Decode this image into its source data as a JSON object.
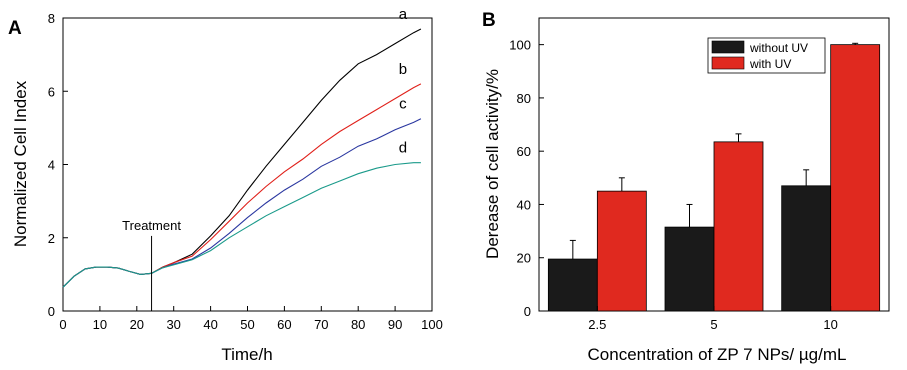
{
  "chart_data": [
    {
      "panel_label": "A",
      "type": "line",
      "xlabel": "Time/h",
      "ylabel": "Normalized Cell Index",
      "xlim": [
        0,
        100
      ],
      "ylim": [
        0,
        8
      ],
      "xticks": [
        0,
        10,
        20,
        30,
        40,
        50,
        60,
        70,
        80,
        90,
        100
      ],
      "yticks": [
        0,
        2,
        4,
        6,
        8
      ],
      "grid": false,
      "annotation": {
        "text": "Treatment",
        "x": 24
      },
      "series": [
        {
          "label": "a",
          "color": "#000000",
          "x": [
            0,
            3,
            6,
            9,
            12,
            15,
            18,
            21,
            24,
            27,
            30,
            35,
            40,
            45,
            50,
            55,
            60,
            65,
            70,
            75,
            80,
            85,
            90,
            95,
            97
          ],
          "y": [
            0.65,
            0.95,
            1.15,
            1.2,
            1.2,
            1.17,
            1.08,
            1.0,
            1.03,
            1.2,
            1.32,
            1.55,
            2.05,
            2.6,
            3.3,
            3.95,
            4.55,
            5.15,
            5.75,
            6.3,
            6.75,
            7.0,
            7.3,
            7.6,
            7.7
          ]
        },
        {
          "label": "b",
          "color": "#e0201a",
          "x": [
            0,
            3,
            6,
            9,
            12,
            15,
            18,
            21,
            24,
            27,
            30,
            35,
            40,
            45,
            50,
            55,
            60,
            65,
            70,
            75,
            80,
            85,
            90,
            95,
            97
          ],
          "y": [
            0.65,
            0.95,
            1.15,
            1.2,
            1.2,
            1.17,
            1.08,
            1.0,
            1.03,
            1.2,
            1.32,
            1.5,
            1.95,
            2.45,
            2.95,
            3.4,
            3.8,
            4.15,
            4.55,
            4.9,
            5.2,
            5.5,
            5.8,
            6.1,
            6.2
          ]
        },
        {
          "label": "c",
          "color": "#2a37a0",
          "x": [
            0,
            3,
            6,
            9,
            12,
            15,
            18,
            21,
            24,
            27,
            30,
            35,
            40,
            45,
            50,
            55,
            60,
            65,
            70,
            75,
            80,
            85,
            90,
            95,
            97
          ],
          "y": [
            0.65,
            0.95,
            1.15,
            1.2,
            1.2,
            1.17,
            1.08,
            1.0,
            1.03,
            1.18,
            1.28,
            1.42,
            1.72,
            2.12,
            2.55,
            2.95,
            3.3,
            3.6,
            3.95,
            4.2,
            4.5,
            4.7,
            4.95,
            5.15,
            5.25
          ]
        },
        {
          "label": "d",
          "color": "#1a9a8a",
          "x": [
            0,
            3,
            6,
            9,
            12,
            15,
            18,
            21,
            24,
            27,
            30,
            35,
            40,
            45,
            50,
            55,
            60,
            65,
            70,
            75,
            80,
            85,
            90,
            95,
            97
          ],
          "y": [
            0.65,
            0.95,
            1.15,
            1.2,
            1.2,
            1.17,
            1.08,
            1.0,
            1.03,
            1.18,
            1.26,
            1.4,
            1.65,
            2.0,
            2.3,
            2.6,
            2.85,
            3.1,
            3.35,
            3.55,
            3.75,
            3.9,
            4.0,
            4.05,
            4.05
          ]
        }
      ]
    },
    {
      "panel_label": "B",
      "type": "bar",
      "xlabel": "Concentration of ZP 7 NPs/ µg/mL",
      "ylabel": "Derease of cell activity/%",
      "ylim": [
        0,
        110
      ],
      "yticks": [
        0,
        20,
        40,
        60,
        80,
        100
      ],
      "categories": [
        "2.5",
        "5",
        "10"
      ],
      "legend_position": "top-right",
      "series": [
        {
          "name": "without UV",
          "color": "#1a1a1a",
          "values": [
            19.5,
            31.5,
            47
          ],
          "errors": [
            7,
            8.5,
            6
          ]
        },
        {
          "name": "with UV",
          "color": "#e0291f",
          "values": [
            45,
            63.5,
            100
          ],
          "errors": [
            5,
            3,
            0.5
          ]
        }
      ]
    }
  ]
}
